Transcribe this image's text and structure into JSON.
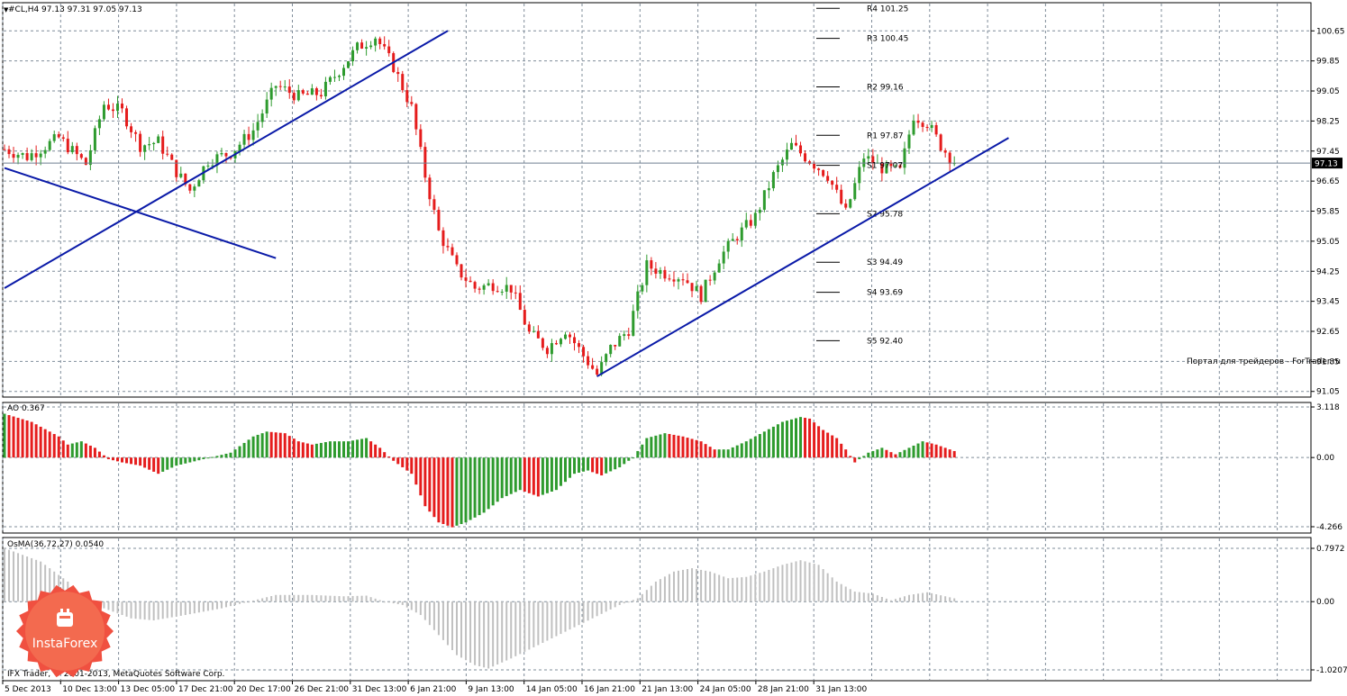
{
  "header": {
    "symbol_line": "#CL,H4  97.13 97.31 97.05 97.13"
  },
  "footer": {
    "copyright": "IFX Trader, © 2001-2013, MetaQuotes Software Corp."
  },
  "watermark": {
    "text": "Портал для трейдеров - ForTrader.ru"
  },
  "badge": {
    "label": "InstaForex"
  },
  "colors": {
    "bull": "#2e9b2e",
    "bear": "#e51c1c",
    "osma": "#c0c0c0",
    "trendline": "#0a1aa8",
    "grid": "#7f8c99"
  },
  "chart_data": [
    {
      "type": "candlestick",
      "title": "#CL,H4",
      "ohlc_readout": {
        "open": 97.13,
        "high": 97.31,
        "low": 97.05,
        "close": 97.13
      },
      "current_price": "97.13",
      "ylim": [
        90.9,
        101.4
      ],
      "y_ticks": [
        "100.65",
        "99.85",
        "99.05",
        "98.25",
        "97.45",
        "96.65",
        "95.85",
        "95.05",
        "94.25",
        "93.45",
        "92.65",
        "91.85",
        "91.05"
      ],
      "x_ticks": [
        "5 Dec 2013",
        "10 Dec 13:00",
        "13 Dec 05:00",
        "17 Dec 21:00",
        "20 Dec 17:00",
        "26 Dec 21:00",
        "31 Dec 13:00",
        "6 Jan 21:00",
        "9 Jan 13:00",
        "14 Jan 05:00",
        "16 Jan 21:00",
        "21 Jan 13:00",
        "24 Jan 05:00",
        "28 Jan 21:00",
        "31 Jan 13:00"
      ],
      "pivot_levels": [
        {
          "label": "R4 101.25",
          "value": 101.25
        },
        {
          "label": "R3 100.45",
          "value": 100.45
        },
        {
          "label": "R2 99.16",
          "value": 99.16
        },
        {
          "label": "R1 97.87",
          "value": 97.87
        },
        {
          "label": "S1 97.07",
          "value": 97.07
        },
        {
          "label": "S2 95.78",
          "value": 95.78
        },
        {
          "label": "S3 94.49",
          "value": 94.49
        },
        {
          "label": "S4 93.69",
          "value": 93.69
        },
        {
          "label": "S5 92.40",
          "value": 92.4
        }
      ],
      "close_path": [
        [
          0,
          97.5
        ],
        [
          5,
          97.3
        ],
        [
          12,
          97.8
        ],
        [
          18,
          97.1
        ],
        [
          22,
          98.7
        ],
        [
          26,
          98.5
        ],
        [
          30,
          97.6
        ],
        [
          34,
          97.7
        ],
        [
          38,
          96.9
        ],
        [
          41,
          96.4
        ],
        [
          45,
          97.2
        ],
        [
          50,
          97.4
        ],
        [
          55,
          98.0
        ],
        [
          60,
          99.2
        ],
        [
          65,
          98.9
        ],
        [
          70,
          99.0
        ],
        [
          74,
          99.6
        ],
        [
          78,
          100.2
        ],
        [
          82,
          100.5
        ],
        [
          86,
          99.7
        ],
        [
          90,
          98.6
        ],
        [
          93,
          96.8
        ],
        [
          96,
          95.3
        ],
        [
          100,
          94.3
        ],
        [
          104,
          93.8
        ],
        [
          108,
          93.9
        ],
        [
          112,
          93.8
        ],
        [
          116,
          92.6
        ],
        [
          120,
          92.2
        ],
        [
          124,
          92.7
        ],
        [
          128,
          92.0
        ],
        [
          131,
          91.5
        ],
        [
          134,
          92.2
        ],
        [
          138,
          92.7
        ],
        [
          142,
          94.4
        ],
        [
          146,
          94.2
        ],
        [
          150,
          94.1
        ],
        [
          154,
          93.6
        ],
        [
          158,
          94.6
        ],
        [
          162,
          95.2
        ],
        [
          166,
          95.7
        ],
        [
          170,
          96.8
        ],
        [
          174,
          97.6
        ],
        [
          178,
          97.2
        ],
        [
          182,
          96.8
        ],
        [
          186,
          95.8
        ],
        [
          190,
          97.3
        ],
        [
          194,
          97.0
        ],
        [
          198,
          96.9
        ],
        [
          201,
          98.4
        ],
        [
          204,
          98.2
        ],
        [
          207,
          97.6
        ],
        [
          210,
          97.13
        ]
      ],
      "trendlines": [
        {
          "from": [
            0,
            93.8
          ],
          "to": [
            98,
            100.65
          ]
        },
        {
          "from": [
            0,
            97.0
          ],
          "to": [
            60,
            94.6
          ]
        },
        {
          "from": [
            131,
            91.45
          ],
          "to": [
            222,
            97.8
          ]
        }
      ]
    },
    {
      "type": "histogram",
      "title": "AO 0.367",
      "ylim": [
        -4.266,
        3.118
      ],
      "y_ticks": [
        "3.118",
        "0.00",
        "-4.266"
      ],
      "path": [
        [
          0,
          2.7
        ],
        [
          6,
          2.2
        ],
        [
          12,
          1.3
        ],
        [
          14,
          0.8
        ],
        [
          17,
          1.0
        ],
        [
          20,
          0.6
        ],
        [
          23,
          -0.1
        ],
        [
          26,
          -0.3
        ],
        [
          30,
          -0.5
        ],
        [
          34,
          -1.0
        ],
        [
          38,
          -0.5
        ],
        [
          44,
          -0.1
        ],
        [
          50,
          0.3
        ],
        [
          55,
          1.3
        ],
        [
          58,
          1.6
        ],
        [
          62,
          1.5
        ],
        [
          65,
          1.0
        ],
        [
          68,
          0.8
        ],
        [
          72,
          1.0
        ],
        [
          76,
          1.0
        ],
        [
          80,
          1.2
        ],
        [
          83,
          0.6
        ],
        [
          86,
          -0.2
        ],
        [
          90,
          -1.0
        ],
        [
          93,
          -3.0
        ],
        [
          96,
          -4.0
        ],
        [
          99,
          -4.3
        ],
        [
          102,
          -4.0
        ],
        [
          106,
          -3.4
        ],
        [
          110,
          -2.5
        ],
        [
          114,
          -2.0
        ],
        [
          118,
          -2.4
        ],
        [
          122,
          -2.0
        ],
        [
          126,
          -1.0
        ],
        [
          129,
          -0.8
        ],
        [
          132,
          -1.1
        ],
        [
          136,
          -0.6
        ],
        [
          139,
          0.0
        ],
        [
          142,
          1.2
        ],
        [
          146,
          1.5
        ],
        [
          150,
          1.3
        ],
        [
          154,
          1.0
        ],
        [
          157,
          0.5
        ],
        [
          160,
          0.5
        ],
        [
          164,
          1.0
        ],
        [
          168,
          1.6
        ],
        [
          172,
          2.2
        ],
        [
          176,
          2.5
        ],
        [
          178,
          2.4
        ],
        [
          181,
          1.7
        ],
        [
          184,
          1.2
        ],
        [
          186,
          0.5
        ],
        [
          188,
          -0.3
        ],
        [
          191,
          0.3
        ],
        [
          194,
          0.6
        ],
        [
          197,
          0.2
        ],
        [
          200,
          0.6
        ],
        [
          203,
          1.0
        ],
        [
          206,
          0.8
        ],
        [
          210,
          0.4
        ]
      ]
    },
    {
      "type": "histogram",
      "title": "OsMA(36,72,27) 0.0540",
      "ylim": [
        -1.0207,
        0.7972
      ],
      "y_ticks": [
        "0.7972",
        "0.00",
        "-1.0207"
      ],
      "path": [
        [
          0,
          0.8
        ],
        [
          8,
          0.6
        ],
        [
          14,
          0.3
        ],
        [
          18,
          0.0
        ],
        [
          22,
          -0.1
        ],
        [
          28,
          -0.25
        ],
        [
          33,
          -0.28
        ],
        [
          40,
          -0.2
        ],
        [
          48,
          -0.1
        ],
        [
          54,
          0.0
        ],
        [
          60,
          0.1
        ],
        [
          68,
          0.1
        ],
        [
          75,
          0.08
        ],
        [
          80,
          0.09
        ],
        [
          84,
          0.0
        ],
        [
          88,
          -0.05
        ],
        [
          92,
          -0.2
        ],
        [
          96,
          -0.5
        ],
        [
          100,
          -0.8
        ],
        [
          104,
          -0.95
        ],
        [
          107,
          -1.0
        ],
        [
          112,
          -0.85
        ],
        [
          118,
          -0.65
        ],
        [
          124,
          -0.45
        ],
        [
          130,
          -0.25
        ],
        [
          136,
          -0.05
        ],
        [
          140,
          0.05
        ],
        [
          144,
          0.3
        ],
        [
          148,
          0.45
        ],
        [
          152,
          0.5
        ],
        [
          156,
          0.45
        ],
        [
          160,
          0.35
        ],
        [
          164,
          0.37
        ],
        [
          168,
          0.45
        ],
        [
          172,
          0.55
        ],
        [
          176,
          0.62
        ],
        [
          180,
          0.55
        ],
        [
          184,
          0.3
        ],
        [
          188,
          0.15
        ],
        [
          192,
          0.12
        ],
        [
          196,
          0.02
        ],
        [
          200,
          0.1
        ],
        [
          204,
          0.14
        ],
        [
          208,
          0.08
        ],
        [
          210,
          0.05
        ]
      ]
    }
  ]
}
